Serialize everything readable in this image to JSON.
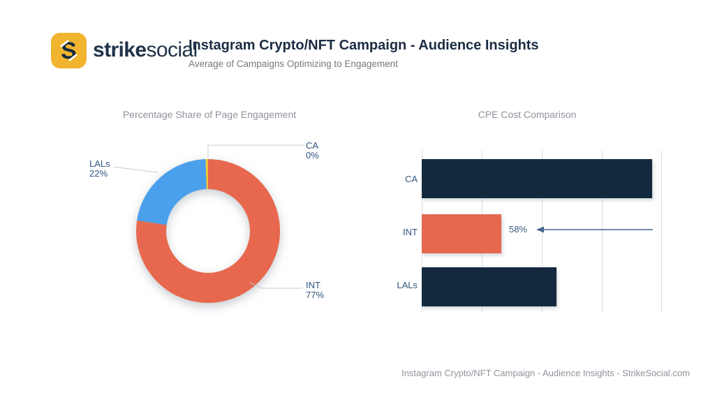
{
  "brand": {
    "name_bold": "strike",
    "name_light": "social",
    "logo_letter": "S",
    "logo_bg": "#F0B42F",
    "logo_fg": "#15293E"
  },
  "header": {
    "title": "Instagram Crypto/NFT Campaign - Audience Insights",
    "subtitle": "Average of Campaigns Optimizing to Engagement"
  },
  "footer": {
    "source": "Instagram Crypto/NFT Campaign - Audience Insights - StrikeSocial.com"
  },
  "colors": {
    "navy_dark": "#132A3E",
    "salmon": "#E7684E",
    "blue": "#4BA0EC",
    "gold": "#F3C433",
    "label_blue": "#2F537E",
    "gray_text": "#8E939B",
    "gridline": "#DADDE2",
    "arrow": "#44678F"
  },
  "chart_data": [
    {
      "id": "engagement-donut",
      "type": "pie",
      "donut": true,
      "title": "Percentage Share of Page Engagement",
      "slices": [
        {
          "label": "CA",
          "value": 0,
          "value_label": "0%",
          "color": "#F3C433"
        },
        {
          "label": "INT",
          "value": 77,
          "value_label": "77%",
          "color": "#E7684E"
        },
        {
          "label": "LALs",
          "value": 22,
          "value_label": "22%",
          "color": "#4BA0EC"
        }
      ],
      "clockwise_from_top": [
        "INT",
        "LALs",
        "CA"
      ],
      "legend": "none, leader-line labels"
    },
    {
      "id": "cpe-bars",
      "type": "bar",
      "orientation": "horizontal",
      "title": "CPE Cost Comparison",
      "categories": [
        "CA",
        "INT",
        "LALs"
      ],
      "values_pct_of_axis": [
        96,
        33,
        56
      ],
      "xlim": [
        0,
        100
      ],
      "gridlines_pct": [
        0,
        25,
        50,
        75,
        100
      ],
      "xlabel": "",
      "ylabel": "",
      "bar_colors": [
        "#132A3E",
        "#E7684E",
        "#132A3E"
      ],
      "annotation": {
        "text": "58%",
        "target": "INT",
        "arrow_direction": "left"
      }
    }
  ]
}
